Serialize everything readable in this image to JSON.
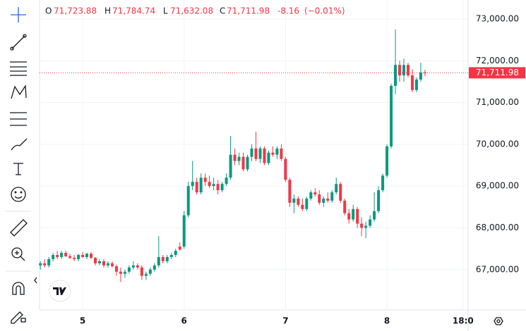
{
  "chart_data": {
    "type": "candlestick",
    "legend_keys": [
      "O",
      "H",
      "L",
      "C"
    ],
    "last_value_labels": [
      "71,723.88",
      "71,784.74",
      "71,632.08",
      "71,711.98"
    ],
    "change": {
      "value": -8.16,
      "label": "-8.16"
    },
    "change_percent": {
      "value": -0.01,
      "label": "(−0.01%)"
    },
    "up_color": "#089981",
    "down_color": "#f23645",
    "grid": true,
    "xlim": [
      -10.2,
      91.2
    ],
    "xticks": [
      {
        "value": 0,
        "label": "5"
      },
      {
        "value": 24,
        "label": "6"
      },
      {
        "value": 48,
        "label": "7"
      },
      {
        "value": 72,
        "label": "8"
      },
      {
        "value": 90,
        "label": "18:0"
      }
    ],
    "ylim": [
      66035,
      73455
    ],
    "yticks": [
      {
        "value": 73000,
        "label": "73,000.00"
      },
      {
        "value": 72000,
        "label": "72,000.00"
      },
      {
        "value": 71000,
        "label": "71,000.00"
      },
      {
        "value": 70000,
        "label": "70,000.00"
      },
      {
        "value": 69000,
        "label": "69,000.00"
      },
      {
        "value": 68000,
        "label": "68,000.00"
      },
      {
        "value": 67000,
        "label": "67,000.00"
      }
    ],
    "x": [
      -10,
      -9,
      -8,
      -7,
      -6,
      -5,
      -4,
      -3,
      -2,
      -1,
      0,
      1,
      2,
      3,
      4,
      5,
      6,
      7,
      8,
      9,
      10,
      11,
      12,
      13,
      14,
      15,
      16,
      17,
      18,
      19,
      20,
      21,
      22,
      23,
      24,
      25,
      26,
      27,
      28,
      29,
      30,
      31,
      32,
      33,
      34,
      35,
      36,
      37,
      38,
      39,
      40,
      41,
      42,
      43,
      44,
      45,
      46,
      47,
      48,
      49,
      50,
      51,
      52,
      53,
      54,
      55,
      56,
      57,
      58,
      59,
      60,
      61,
      62,
      63,
      64,
      65,
      66,
      67,
      68,
      69,
      70,
      71,
      72,
      73,
      74,
      75,
      76,
      77,
      78,
      79,
      80,
      81
    ],
    "open": [
      67100,
      67150,
      67100,
      67250,
      67350,
      67300,
      67400,
      67320,
      67280,
      67250,
      67350,
      67300,
      67380,
      67280,
      67150,
      67200,
      67100,
      67150,
      67080,
      66950,
      66900,
      66950,
      67050,
      67100,
      67050,
      66850,
      66900,
      67000,
      67100,
      67300,
      67200,
      67300,
      67350,
      67550,
      67550,
      68300,
      69000,
      69100,
      68850,
      69200,
      69100,
      69000,
      69050,
      68900,
      69050,
      69200,
      69750,
      69600,
      69700,
      69400,
      69700,
      69900,
      69650,
      69900,
      69550,
      69800,
      69750,
      69900,
      69650,
      69150,
      68600,
      68700,
      68550,
      68450,
      68700,
      68850,
      68800,
      68600,
      68700,
      68650,
      68850,
      69050,
      68650,
      68350,
      68200,
      68450,
      68100,
      68000,
      68050,
      68200,
      68400,
      68900,
      69250,
      69950,
      71400,
      71900,
      71650,
      71900,
      71650,
      71300,
      71550,
      71723.88
    ],
    "high": [
      67200,
      67250,
      67300,
      67400,
      67450,
      67450,
      67450,
      67380,
      67350,
      67380,
      67420,
      67400,
      67420,
      67300,
      67250,
      67250,
      67200,
      67200,
      67120,
      67050,
      67000,
      67100,
      67200,
      67150,
      67100,
      66950,
      67050,
      67150,
      67800,
      67350,
      67350,
      67400,
      67500,
      67650,
      68400,
      69100,
      69600,
      69200,
      69300,
      69300,
      69250,
      69200,
      69150,
      69100,
      69300,
      70200,
      69900,
      69800,
      69800,
      69750,
      70000,
      70300,
      69950,
      69950,
      69850,
      69950,
      69950,
      70000,
      69700,
      69200,
      68800,
      68750,
      68700,
      68750,
      68900,
      68950,
      68900,
      68750,
      68850,
      68900,
      69200,
      69100,
      68700,
      68450,
      68550,
      68500,
      68250,
      68150,
      68300,
      68850,
      69000,
      69300,
      70000,
      71450,
      72750,
      72000,
      72050,
      71950,
      71800,
      71600,
      71950,
      71784.74
    ],
    "low": [
      67000,
      67050,
      67050,
      67200,
      67250,
      67250,
      67300,
      67250,
      67200,
      67200,
      67280,
      67250,
      67250,
      67100,
      67100,
      67050,
      67050,
      67050,
      66850,
      66700,
      66800,
      66900,
      67000,
      67000,
      66750,
      66750,
      66850,
      66950,
      67050,
      67150,
      67150,
      67250,
      67300,
      67450,
      67500,
      68250,
      68900,
      68800,
      68800,
      69000,
      68950,
      68900,
      68800,
      68850,
      69000,
      69150,
      69500,
      69500,
      69350,
      69350,
      69600,
      69600,
      69550,
      69500,
      69500,
      69700,
      69650,
      69600,
      69100,
      68500,
      68350,
      68500,
      68400,
      68400,
      68650,
      68750,
      68550,
      68500,
      68600,
      68600,
      68800,
      68600,
      68300,
      68100,
      68150,
      68000,
      67800,
      67750,
      68000,
      68150,
      68350,
      68850,
      69200,
      69900,
      71200,
      71500,
      71500,
      71600,
      71250,
      71250,
      71500,
      71632.08
    ],
    "close": [
      67150,
      67100,
      67250,
      67350,
      67300,
      67400,
      67320,
      67280,
      67250,
      67350,
      67300,
      67380,
      67280,
      67150,
      67200,
      67100,
      67150,
      67080,
      66950,
      66900,
      66950,
      67050,
      67100,
      67050,
      66850,
      66900,
      67000,
      67100,
      67300,
      67200,
      67300,
      67350,
      67450,
      67480,
      68300,
      69000,
      69100,
      68850,
      69200,
      69100,
      69000,
      69050,
      68900,
      69050,
      69200,
      69750,
      69600,
      69700,
      69400,
      69700,
      69900,
      69650,
      69900,
      69550,
      69800,
      69750,
      69900,
      69650,
      69150,
      68600,
      68700,
      68550,
      68450,
      68700,
      68850,
      68800,
      68600,
      68700,
      68650,
      68850,
      69050,
      68650,
      68350,
      68200,
      68450,
      68100,
      68000,
      68050,
      68200,
      68400,
      68900,
      69250,
      69950,
      71400,
      71900,
      71650,
      71900,
      71650,
      71300,
      71550,
      71720.14,
      71711.98
    ]
  }
}
